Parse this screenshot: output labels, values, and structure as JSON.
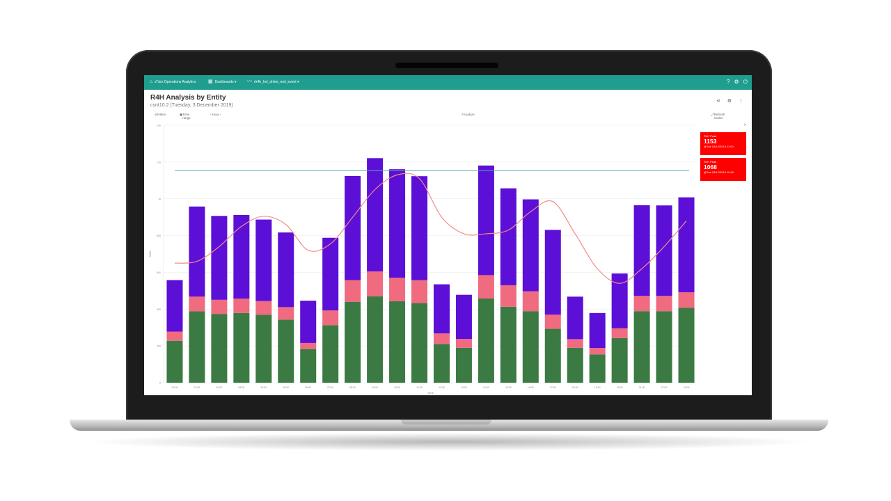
{
  "topbar": {
    "app_name": "ɪT/ɪm Operations Analytics",
    "dashboards_label": "Dashboards ▾",
    "metric_label": "rlr4h_hol_dnlee_reol_event ▾",
    "icons": [
      "help-icon",
      "gear-icon",
      "power-icon"
    ]
  },
  "page": {
    "title": "R4H Analysis by Entity",
    "subtitle": "csnt10.2 (Tuesday, 3 December 2019)"
  },
  "toolbar": {
    "filters": "Filters",
    "time_range": "Time range",
    "period": "‹ Hour ›",
    "analyze": "Analyze",
    "refresh_scales": "Refresh scales"
  },
  "tiles": [
    {
      "label": "R4H Peak",
      "value": "1153",
      "timestamp": "@Tue 03/12/2019 11:00",
      "color": "#ff0000"
    },
    {
      "label": "R4H Peak",
      "value": "1068",
      "timestamp": "@Tue 03/12/2019 10:00",
      "color": "#ff0000"
    }
  ],
  "chart_data": {
    "type": "bar",
    "stacked": true,
    "ylabel": "MSU",
    "xlabel": "Time",
    "ylim": [
      0,
      1400
    ],
    "yticks": [
      "0",
      "200",
      "400",
      "600",
      "800",
      "1k",
      "1.2k",
      "1.4k"
    ],
    "categories": [
      "00:00",
      "01:00",
      "02:00",
      "03:00",
      "04:00",
      "05:00",
      "06:00",
      "07:00",
      "08:00",
      "09:00",
      "10:00",
      "11:00",
      "12:00",
      "13:00",
      "14:00",
      "15:00",
      "16:00",
      "17:00",
      "18:00",
      "19:00",
      "20:00",
      "21:00",
      "22:00",
      "23:00"
    ],
    "series": [
      {
        "color": "#3b7a42",
        "values": [
          228,
          388,
          374,
          379,
          369,
          343,
          183,
          313,
          440,
          470,
          443,
          433,
          211,
          190,
          458,
          413,
          389,
          293,
          190,
          154,
          243,
          389,
          389,
          408
        ]
      },
      {
        "color": "#f06a80",
        "values": [
          50,
          80,
          77,
          78,
          75,
          68,
          33,
          80,
          118,
          135,
          128,
          125,
          57,
          48,
          127,
          117,
          108,
          77,
          47,
          35,
          53,
          83,
          83,
          84
        ]
      },
      {
        "color": "#5c0fd6",
        "values": [
          280,
          490,
          456,
          455,
          443,
          406,
          230,
          395,
          566,
          616,
          590,
          565,
          267,
          240,
          596,
          527,
          500,
          461,
          231,
          190,
          298,
          493,
          492,
          516
        ]
      }
    ],
    "reference_line": {
      "value": 1153,
      "color": "#5aa6b8"
    },
    "trend_line": {
      "color": "#f28b8b",
      "values": [
        650,
        660,
        740,
        850,
        905,
        860,
        720,
        755,
        900,
        1050,
        1130,
        1110,
        900,
        810,
        810,
        830,
        930,
        985,
        810,
        620,
        540,
        620,
        740,
        880
      ]
    },
    "grid": true,
    "colors": {
      "accent": "#1f9e8f",
      "alert": "#ff0000"
    }
  }
}
